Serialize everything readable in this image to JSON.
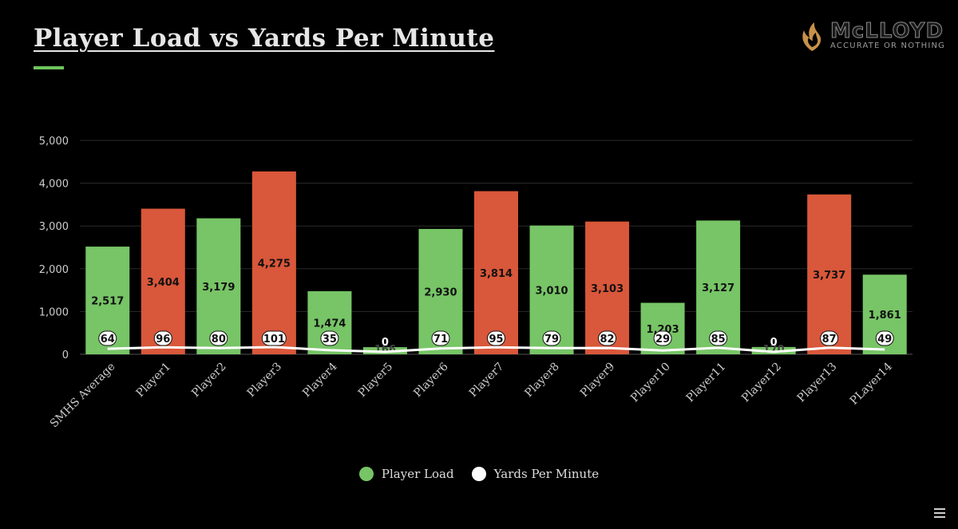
{
  "header": {
    "title": "Player Load vs Yards Per Minute"
  },
  "logo": {
    "name": "McLLOYD",
    "tagline": "ACCURATE OR NOTHING"
  },
  "colors": {
    "green": "#77c566",
    "red": "#d9573a",
    "line": "#ffffff",
    "grid": "#2b2b2b",
    "axis_text": "#cccccc",
    "accent": "#6ec55d"
  },
  "chart_data": {
    "type": "bar",
    "title": "Player Load vs Yards Per Minute",
    "xlabel": "",
    "ylabel": "",
    "ylim": [
      0,
      5000
    ],
    "yticks": [
      0,
      1000,
      2000,
      3000,
      4000,
      5000
    ],
    "ytick_labels": [
      "0",
      "1,000",
      "2,000",
      "3,000",
      "4,000",
      "5,000"
    ],
    "grid": true,
    "legend_position": "bottom-center",
    "categories": [
      "SMHS Average",
      "Player1",
      "Player2",
      "Player3",
      "Player4",
      "Player5",
      "Player6",
      "Player7",
      "Player8",
      "Player9",
      "Player10",
      "Player11",
      "Player12",
      "Player13",
      "PLayer14"
    ],
    "series": [
      {
        "name": "Player Load",
        "type": "bar",
        "values": [
          2517,
          3404,
          3179,
          4275,
          1474,
          166,
          2930,
          3814,
          3010,
          3103,
          1203,
          3127,
          170,
          3737,
          1861
        ],
        "value_labels": [
          "2,517",
          "3,404",
          "3,179",
          "4,275",
          "1,474",
          "166",
          "2,930",
          "3,814",
          "3,010",
          "3,103",
          "1,203",
          "3,127",
          "170",
          "3,737",
          "1,861"
        ],
        "bar_colors": [
          "green",
          "red",
          "green",
          "red",
          "green",
          "green",
          "green",
          "red",
          "green",
          "red",
          "green",
          "green",
          "green",
          "red",
          "green"
        ]
      },
      {
        "name": "Yards Per Minute",
        "type": "line",
        "values": [
          64,
          96,
          80,
          101,
          35,
          0,
          71,
          95,
          79,
          82,
          29,
          85,
          0,
          87,
          49
        ],
        "value_labels": [
          "64",
          "96",
          "80",
          "101",
          "35",
          "0",
          "71",
          "95",
          "79",
          "82",
          "29",
          "85",
          "0",
          "87",
          "49"
        ]
      }
    ]
  }
}
